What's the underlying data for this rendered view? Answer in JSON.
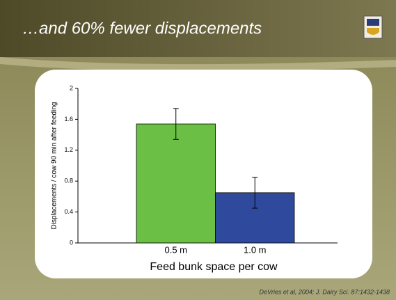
{
  "chart_data": {
    "type": "bar",
    "title": "…and 60% fewer displacements",
    "y_label": "Displacements / cow 90 min after feeding",
    "x_label": "Feed bunk space per cow",
    "source": "DeVries et al, 2004; J. Dairy Sci. 87:1432-1438",
    "categories": [
      "0.5 m",
      "1.0 m"
    ],
    "series": [
      {
        "name": "Displacements",
        "colors": [
          "#6cbf45",
          "#2f4a9d"
        ],
        "values": [
          1.54,
          0.65
        ],
        "errors": [
          0.2,
          0.2
        ]
      }
    ],
    "ylim": [
      0,
      2
    ],
    "yticks": [
      0,
      0.4,
      0.8,
      1.2,
      1.6,
      2
    ]
  }
}
